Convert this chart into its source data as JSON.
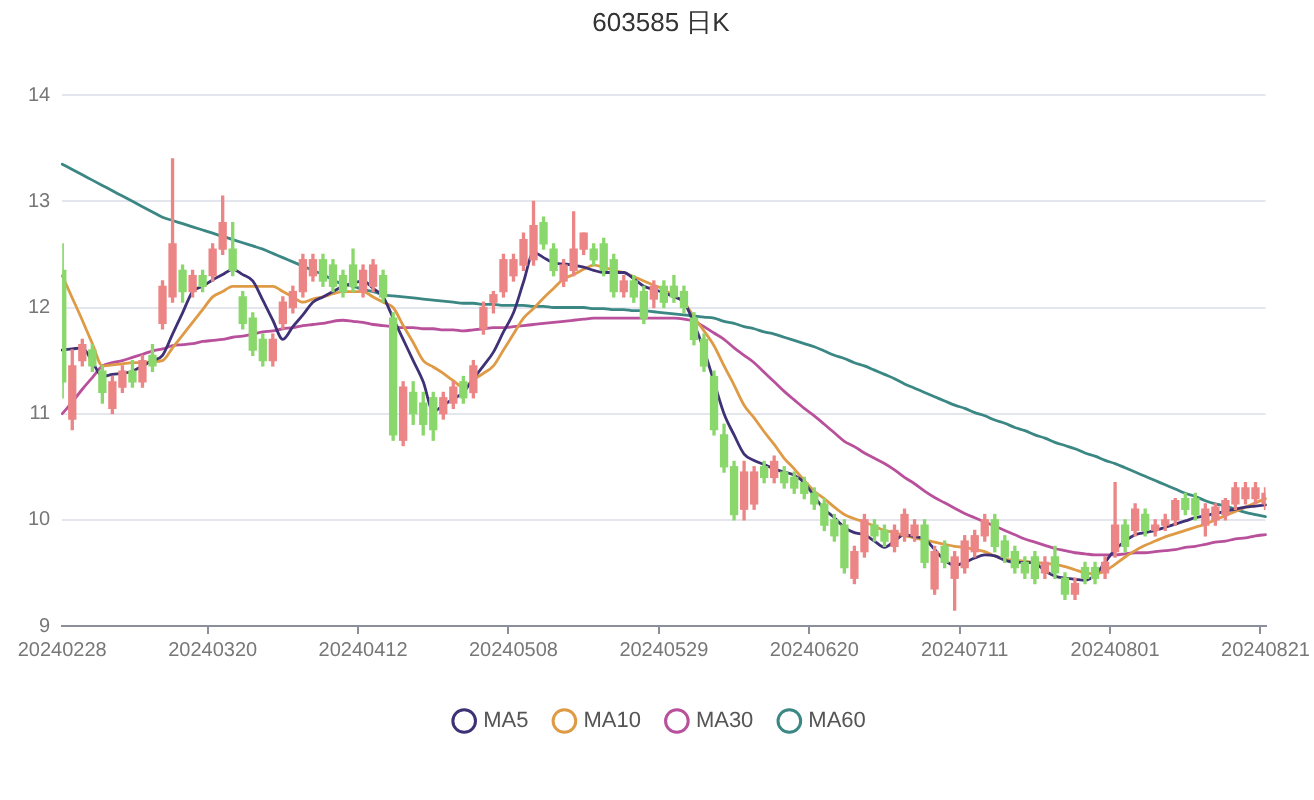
{
  "chart_data": {
    "type": "candlestick",
    "title": "603585 日K",
    "categories": [
      "20240228",
      null,
      null,
      null,
      null,
      null,
      null,
      null,
      null,
      null,
      null,
      null,
      null,
      null,
      null,
      "20240320",
      null,
      null,
      null,
      null,
      null,
      null,
      null,
      null,
      null,
      null,
      null,
      null,
      null,
      null,
      "20240412",
      null,
      null,
      null,
      null,
      null,
      null,
      null,
      null,
      null,
      null,
      null,
      null,
      null,
      null,
      "20240508",
      null,
      null,
      null,
      null,
      null,
      null,
      null,
      null,
      null,
      null,
      null,
      null,
      null,
      null,
      "20240529",
      null,
      null,
      null,
      null,
      null,
      null,
      null,
      null,
      null,
      null,
      null,
      null,
      null,
      null,
      "20240620",
      null,
      null,
      null,
      null,
      null,
      null,
      null,
      null,
      null,
      null,
      null,
      null,
      null,
      null,
      "20240711",
      null,
      null,
      null,
      null,
      null,
      null,
      null,
      null,
      null,
      null,
      null,
      null,
      null,
      null,
      "20240801",
      null,
      null,
      null,
      null,
      null,
      null,
      null,
      null,
      null,
      null,
      null,
      null,
      null,
      null,
      "20240821"
    ],
    "ohlc": [
      [
        12.35,
        12.6,
        11.15,
        11.3
      ],
      [
        10.95,
        11.6,
        10.85,
        11.45
      ],
      [
        11.5,
        11.7,
        11.45,
        11.65
      ],
      [
        11.6,
        11.65,
        11.4,
        11.45
      ],
      [
        11.4,
        11.45,
        11.1,
        11.2
      ],
      [
        11.05,
        11.35,
        11.0,
        11.3
      ],
      [
        11.25,
        11.45,
        11.2,
        11.4
      ],
      [
        11.4,
        11.5,
        11.25,
        11.3
      ],
      [
        11.3,
        11.55,
        11.25,
        11.5
      ],
      [
        11.55,
        11.65,
        11.4,
        11.45
      ],
      [
        11.85,
        12.25,
        11.8,
        12.2
      ],
      [
        12.1,
        13.4,
        12.05,
        12.6
      ],
      [
        12.35,
        12.4,
        12.05,
        12.15
      ],
      [
        12.15,
        12.35,
        12.1,
        12.3
      ],
      [
        12.3,
        12.35,
        12.15,
        12.2
      ],
      [
        12.3,
        12.6,
        12.25,
        12.55
      ],
      [
        12.55,
        13.05,
        12.5,
        12.8
      ],
      [
        12.55,
        12.8,
        12.3,
        12.35
      ],
      [
        12.1,
        12.15,
        11.8,
        11.85
      ],
      [
        11.9,
        11.95,
        11.55,
        11.6
      ],
      [
        11.7,
        11.75,
        11.45,
        11.5
      ],
      [
        11.5,
        11.75,
        11.45,
        11.7
      ],
      [
        11.85,
        12.1,
        11.8,
        12.05
      ],
      [
        12.0,
        12.2,
        11.95,
        12.15
      ],
      [
        12.15,
        12.5,
        12.1,
        12.45
      ],
      [
        12.3,
        12.5,
        12.25,
        12.45
      ],
      [
        12.45,
        12.5,
        12.2,
        12.25
      ],
      [
        12.4,
        12.45,
        12.15,
        12.2
      ],
      [
        12.3,
        12.35,
        12.1,
        12.15
      ],
      [
        12.4,
        12.55,
        12.15,
        12.2
      ],
      [
        12.15,
        12.4,
        12.1,
        12.35
      ],
      [
        12.2,
        12.45,
        12.15,
        12.4
      ],
      [
        12.3,
        12.35,
        12.05,
        12.1
      ],
      [
        11.9,
        11.95,
        10.75,
        10.8
      ],
      [
        10.75,
        11.3,
        10.7,
        11.25
      ],
      [
        11.2,
        11.3,
        10.9,
        11.0
      ],
      [
        11.1,
        11.2,
        10.8,
        10.9
      ],
      [
        11.15,
        11.2,
        10.75,
        10.85
      ],
      [
        11.0,
        11.2,
        10.95,
        11.15
      ],
      [
        11.1,
        11.3,
        11.05,
        11.25
      ],
      [
        11.3,
        11.35,
        11.1,
        11.15
      ],
      [
        11.2,
        11.5,
        11.15,
        11.45
      ],
      [
        11.8,
        12.05,
        11.75,
        12.0
      ],
      [
        12.05,
        12.15,
        11.95,
        12.12
      ],
      [
        12.15,
        12.5,
        12.1,
        12.45
      ],
      [
        12.3,
        12.5,
        12.25,
        12.45
      ],
      [
        12.4,
        12.7,
        12.35,
        12.64
      ],
      [
        12.45,
        13.0,
        12.4,
        12.77
      ],
      [
        12.8,
        12.85,
        12.55,
        12.6
      ],
      [
        12.55,
        12.6,
        12.3,
        12.35
      ],
      [
        12.25,
        12.45,
        12.2,
        12.4
      ],
      [
        12.35,
        12.9,
        12.3,
        12.55
      ],
      [
        12.55,
        12.7,
        12.5,
        12.7
      ],
      [
        12.55,
        12.6,
        12.4,
        12.45
      ],
      [
        12.6,
        12.65,
        12.3,
        12.35
      ],
      [
        12.45,
        12.5,
        12.1,
        12.15
      ],
      [
        12.15,
        12.3,
        12.1,
        12.25
      ],
      [
        12.25,
        12.3,
        12.05,
        12.1
      ],
      [
        12.15,
        12.2,
        11.85,
        11.9
      ],
      [
        12.08,
        12.25,
        12.0,
        12.2
      ],
      [
        12.2,
        12.25,
        12.0,
        12.05
      ],
      [
        12.2,
        12.3,
        12.05,
        12.1
      ],
      [
        12.15,
        12.2,
        11.95,
        12.0
      ],
      [
        11.9,
        11.95,
        11.65,
        11.7
      ],
      [
        11.7,
        11.75,
        11.4,
        11.45
      ],
      [
        11.35,
        11.4,
        10.8,
        10.85
      ],
      [
        10.8,
        10.9,
        10.45,
        10.5
      ],
      [
        10.5,
        10.55,
        10.0,
        10.05
      ],
      [
        10.1,
        10.55,
        10.0,
        10.45
      ],
      [
        10.15,
        10.5,
        10.1,
        10.45
      ],
      [
        10.5,
        10.55,
        10.35,
        10.4
      ],
      [
        10.4,
        10.6,
        10.35,
        10.55
      ],
      [
        10.45,
        10.5,
        10.3,
        10.35
      ],
      [
        10.4,
        10.45,
        10.25,
        10.3
      ],
      [
        10.35,
        10.4,
        10.2,
        10.25
      ],
      [
        10.25,
        10.3,
        10.1,
        10.15
      ],
      [
        10.15,
        10.2,
        9.9,
        9.95
      ],
      [
        10.0,
        10.05,
        9.8,
        9.85
      ],
      [
        9.95,
        10.0,
        9.5,
        9.55
      ],
      [
        9.45,
        9.75,
        9.4,
        9.7
      ],
      [
        9.7,
        10.05,
        9.65,
        10.0
      ],
      [
        9.95,
        10.0,
        9.8,
        9.85
      ],
      [
        9.9,
        9.95,
        9.75,
        9.8
      ],
      [
        9.75,
        9.95,
        9.7,
        9.9
      ],
      [
        9.85,
        10.1,
        9.8,
        10.05
      ],
      [
        9.85,
        10.0,
        9.8,
        9.95
      ],
      [
        9.95,
        10.0,
        9.55,
        9.6
      ],
      [
        9.35,
        9.75,
        9.3,
        9.7
      ],
      [
        9.75,
        9.8,
        9.55,
        9.6
      ],
      [
        9.45,
        9.7,
        9.15,
        9.65
      ],
      [
        9.55,
        9.85,
        9.5,
        9.8
      ],
      [
        9.7,
        9.9,
        9.65,
        9.85
      ],
      [
        9.85,
        10.05,
        9.8,
        10.0
      ],
      [
        10.0,
        10.05,
        9.7,
        9.75
      ],
      [
        9.8,
        9.85,
        9.6,
        9.65
      ],
      [
        9.7,
        9.75,
        9.5,
        9.55
      ],
      [
        9.6,
        9.65,
        9.45,
        9.5
      ],
      [
        9.65,
        9.7,
        9.4,
        9.45
      ],
      [
        9.5,
        9.65,
        9.45,
        9.6
      ],
      [
        9.65,
        9.75,
        9.45,
        9.5
      ],
      [
        9.45,
        9.5,
        9.25,
        9.3
      ],
      [
        9.3,
        9.45,
        9.25,
        9.4
      ],
      [
        9.55,
        9.6,
        9.4,
        9.45
      ],
      [
        9.55,
        9.6,
        9.4,
        9.45
      ],
      [
        9.5,
        9.65,
        9.45,
        9.6
      ],
      [
        9.7,
        10.35,
        9.65,
        9.95
      ],
      [
        9.95,
        10.0,
        9.7,
        9.75
      ],
      [
        9.9,
        10.15,
        9.85,
        10.1
      ],
      [
        10.05,
        10.1,
        9.85,
        9.9
      ],
      [
        9.9,
        10.0,
        9.85,
        9.95
      ],
      [
        9.95,
        10.05,
        9.9,
        10.0
      ],
      [
        10.0,
        10.2,
        9.95,
        10.18
      ],
      [
        10.2,
        10.25,
        10.05,
        10.1
      ],
      [
        10.2,
        10.25,
        10.0,
        10.05
      ],
      [
        9.95,
        10.15,
        9.85,
        10.1
      ],
      [
        10.0,
        10.15,
        9.95,
        10.12
      ],
      [
        10.05,
        10.2,
        10.0,
        10.18
      ],
      [
        10.15,
        10.35,
        10.1,
        10.3
      ],
      [
        10.2,
        10.35,
        10.15,
        10.3
      ],
      [
        10.2,
        10.35,
        10.15,
        10.3
      ],
      [
        10.15,
        10.3,
        10.1,
        10.25
      ]
    ],
    "colors": [
      "#8ad86c",
      "#ec8585",
      "#ec8585",
      "#8ad86c",
      "#8ad86c",
      "#ec8585",
      "#ec8585",
      "#8ad86c",
      "#ec8585",
      "#8ad86c",
      "#ec8585",
      "#ec8585",
      "#8ad86c",
      "#ec8585",
      "#8ad86c",
      "#ec8585",
      "#ec8585",
      "#8ad86c",
      "#8ad86c",
      "#8ad86c",
      "#8ad86c",
      "#ec8585",
      "#ec8585",
      "#ec8585",
      "#ec8585",
      "#ec8585",
      "#8ad86c",
      "#8ad86c",
      "#8ad86c",
      "#8ad86c",
      "#ec8585",
      "#ec8585",
      "#8ad86c",
      "#8ad86c",
      "#ec8585",
      "#8ad86c",
      "#8ad86c",
      "#8ad86c",
      "#ec8585",
      "#ec8585",
      "#8ad86c",
      "#ec8585",
      "#ec8585",
      "#ec8585",
      "#ec8585",
      "#ec8585",
      "#ec8585",
      "#ec8585",
      "#8ad86c",
      "#8ad86c",
      "#ec8585",
      "#ec8585",
      "#ec8585",
      "#8ad86c",
      "#8ad86c",
      "#8ad86c",
      "#ec8585",
      "#8ad86c",
      "#8ad86c",
      "#ec8585",
      "#8ad86c",
      "#8ad86c",
      "#8ad86c",
      "#8ad86c",
      "#8ad86c",
      "#8ad86c",
      "#8ad86c",
      "#8ad86c",
      "#ec8585",
      "#ec8585",
      "#8ad86c",
      "#ec8585",
      "#8ad86c",
      "#8ad86c",
      "#8ad86c",
      "#8ad86c",
      "#8ad86c",
      "#8ad86c",
      "#8ad86c",
      "#ec8585",
      "#ec8585",
      "#8ad86c",
      "#8ad86c",
      "#ec8585",
      "#ec8585",
      "#ec8585",
      "#8ad86c",
      "#ec8585",
      "#8ad86c",
      "#ec8585",
      "#ec8585",
      "#ec8585",
      "#ec8585",
      "#8ad86c",
      "#8ad86c",
      "#8ad86c",
      "#8ad86c",
      "#8ad86c",
      "#ec8585",
      "#8ad86c",
      "#8ad86c",
      "#ec8585",
      "#8ad86c",
      "#8ad86c",
      "#ec8585",
      "#ec8585",
      "#8ad86c",
      "#ec8585",
      "#8ad86c",
      "#ec8585",
      "#ec8585",
      "#ec8585",
      "#8ad86c",
      "#8ad86c",
      "#ec8585",
      "#ec8585",
      "#ec8585",
      "#ec8585",
      "#ec8585",
      "#ec8585",
      "#ec8585"
    ],
    "series": [
      {
        "name": "MA5",
        "type": "line",
        "color": "#3f3176",
        "values": [
          11.6,
          11.61,
          11.62,
          11.49,
          11.35,
          11.37,
          11.38,
          11.4,
          11.45,
          11.5,
          11.55,
          11.75,
          11.95,
          12.15,
          12.2,
          12.26,
          12.31,
          12.36,
          12.31,
          12.25,
          12.07,
          11.88,
          11.7,
          11.82,
          11.93,
          12.05,
          12.1,
          12.15,
          12.2,
          12.23,
          12.25,
          12.18,
          12.1,
          11.9,
          11.7,
          11.5,
          11.3,
          11.02,
          11.08,
          11.14,
          11.2,
          11.33,
          11.45,
          11.58,
          11.77,
          11.95,
          12.24,
          12.52,
          12.47,
          12.42,
          12.41,
          12.4,
          12.38,
          12.35,
          12.33,
          12.33,
          12.33,
          12.27,
          12.2,
          12.17,
          12.14,
          12.1,
          12.05,
          11.85,
          11.6,
          11.3,
          11.0,
          10.8,
          10.62,
          10.56,
          10.52,
          10.48,
          10.45,
          10.42,
          10.35,
          10.22,
          10.1,
          10.02,
          9.93,
          9.88,
          9.86,
          9.8,
          9.74,
          9.8,
          9.86,
          9.84,
          9.82,
          9.72,
          9.62,
          9.57,
          9.6,
          9.64,
          9.67,
          9.66,
          9.62,
          9.6,
          9.6,
          9.59,
          9.52,
          9.47,
          9.45,
          9.44,
          9.43,
          9.48,
          9.6,
          9.72,
          9.8,
          9.86,
          9.88,
          9.9,
          9.93,
          9.96,
          9.99,
          10.02,
          10.04,
          10.06,
          10.08,
          10.1,
          10.12,
          10.13,
          10.14
        ]
      },
      {
        "name": "MA10",
        "type": "line",
        "color": "#de9a45",
        "values": [
          12.3,
          12.09,
          11.88,
          11.66,
          11.45,
          11.46,
          11.47,
          11.48,
          11.48,
          11.49,
          11.5,
          11.62,
          11.74,
          11.86,
          11.98,
          12.1,
          12.15,
          12.2,
          12.2,
          12.2,
          12.2,
          12.2,
          12.15,
          12.1,
          12.05,
          12.08,
          12.1,
          12.13,
          12.15,
          12.15,
          12.15,
          12.1,
          12.05,
          12.0,
          11.83,
          11.67,
          11.5,
          11.44,
          11.38,
          11.31,
          11.25,
          11.32,
          11.38,
          11.45,
          11.6,
          11.75,
          11.9,
          11.99,
          12.09,
          12.18,
          12.27,
          12.31,
          12.36,
          12.4,
          12.38,
          12.35,
          12.33,
          12.29,
          12.25,
          12.21,
          12.17,
          12.11,
          12.05,
          11.91,
          11.78,
          11.64,
          11.45,
          11.27,
          11.08,
          10.96,
          10.83,
          10.71,
          10.58,
          10.48,
          10.37,
          10.27,
          10.2,
          10.12,
          10.05,
          10.01,
          9.98,
          9.94,
          9.9,
          9.88,
          9.85,
          9.83,
          9.81,
          9.79,
          9.77,
          9.75,
          9.74,
          9.72,
          9.7,
          9.66,
          9.63,
          9.62,
          9.61,
          9.6,
          9.59,
          9.58,
          9.56,
          9.53,
          9.5,
          9.49,
          9.52,
          9.58,
          9.65,
          9.71,
          9.76,
          9.8,
          9.84,
          9.87,
          9.9,
          9.93,
          9.96,
          10.0,
          10.04,
          10.08,
          10.12,
          10.16,
          10.2
        ]
      },
      {
        "name": "MA30",
        "type": "line",
        "color": "#b8509b",
        "values": [
          11.0,
          11.11,
          11.23,
          11.34,
          11.45,
          11.48,
          11.5,
          11.53,
          11.56,
          11.59,
          11.61,
          11.64,
          11.65,
          11.66,
          11.68,
          11.69,
          11.7,
          11.72,
          11.73,
          11.75,
          11.77,
          11.78,
          11.8,
          11.81,
          11.83,
          11.84,
          11.85,
          11.87,
          11.88,
          11.87,
          11.86,
          11.84,
          11.83,
          11.82,
          11.81,
          11.81,
          11.8,
          11.8,
          11.79,
          11.79,
          11.78,
          11.79,
          11.8,
          11.81,
          11.81,
          11.82,
          11.83,
          11.84,
          11.85,
          11.86,
          11.87,
          11.88,
          11.89,
          11.9,
          11.9,
          11.9,
          11.9,
          11.9,
          11.9,
          11.9,
          11.9,
          11.9,
          11.89,
          11.87,
          11.82,
          11.76,
          11.7,
          11.62,
          11.55,
          11.48,
          11.39,
          11.3,
          11.21,
          11.13,
          11.05,
          10.98,
          10.9,
          10.82,
          10.74,
          10.69,
          10.63,
          10.58,
          10.53,
          10.47,
          10.4,
          10.34,
          10.27,
          10.21,
          10.16,
          10.11,
          10.06,
          10.02,
          9.98,
          9.94,
          9.9,
          9.86,
          9.82,
          9.79,
          9.76,
          9.73,
          9.71,
          9.69,
          9.68,
          9.67,
          9.67,
          9.67,
          9.68,
          9.69,
          9.69,
          9.7,
          9.71,
          9.72,
          9.74,
          9.75,
          9.77,
          9.79,
          9.8,
          9.82,
          9.83,
          9.85,
          9.86
        ]
      },
      {
        "name": "MA60",
        "type": "line",
        "color": "#3a8784",
        "values": [
          13.35,
          13.3,
          13.25,
          13.2,
          13.15,
          13.1,
          13.05,
          13.0,
          12.95,
          12.9,
          12.85,
          12.82,
          12.79,
          12.76,
          12.73,
          12.7,
          12.67,
          12.64,
          12.61,
          12.58,
          12.55,
          12.51,
          12.47,
          12.43,
          12.39,
          12.35,
          12.31,
          12.26,
          12.22,
          12.2,
          12.17,
          12.15,
          12.12,
          12.11,
          12.1,
          12.09,
          12.08,
          12.07,
          12.06,
          12.05,
          12.04,
          12.04,
          12.03,
          12.03,
          12.02,
          12.02,
          12.02,
          12.01,
          12.01,
          12.0,
          12.0,
          12.0,
          12.0,
          11.99,
          11.99,
          11.98,
          11.98,
          11.97,
          11.97,
          11.96,
          11.95,
          11.94,
          11.93,
          11.92,
          11.91,
          11.9,
          11.87,
          11.85,
          11.82,
          11.8,
          11.77,
          11.75,
          11.72,
          11.69,
          11.66,
          11.63,
          11.59,
          11.55,
          11.52,
          11.48,
          11.45,
          11.41,
          11.37,
          11.33,
          11.28,
          11.24,
          11.2,
          11.16,
          11.12,
          11.08,
          11.05,
          11.01,
          10.98,
          10.94,
          10.91,
          10.87,
          10.84,
          10.8,
          10.77,
          10.73,
          10.7,
          10.67,
          10.63,
          10.6,
          10.56,
          10.53,
          10.49,
          10.45,
          10.41,
          10.37,
          10.33,
          10.29,
          10.25,
          10.22,
          10.18,
          10.15,
          10.13,
          10.1,
          10.07,
          10.05,
          10.03
        ]
      }
    ],
    "ylim": [
      9,
      14
    ],
    "yticks": [
      9,
      10,
      11,
      12,
      13,
      14
    ],
    "grid": "y",
    "legend": "bottom",
    "marker": "none"
  }
}
